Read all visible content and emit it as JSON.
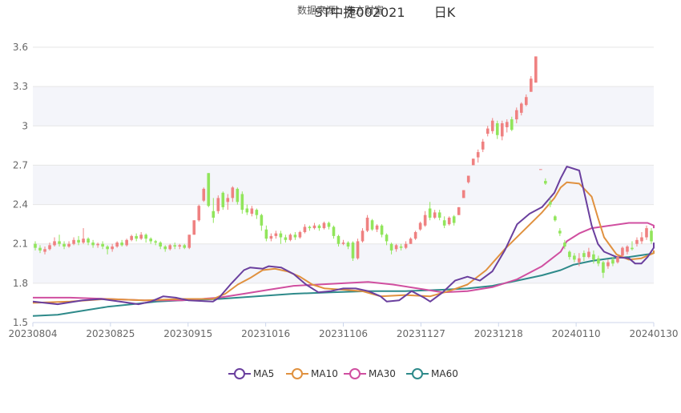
{
  "chart_data": {
    "type": "candlestick",
    "title": "ST中捷002021",
    "title_suffix": "日K",
    "subtitle": "数据来源：东方财富",
    "ylim": [
      1.5,
      3.6
    ],
    "y_ticks": [
      "1.5",
      "1.8",
      "2.1",
      "2.4",
      "2.7",
      "3",
      "3.3",
      "3.6"
    ],
    "x_tick_labels": [
      "20230804",
      "20230825",
      "20230915",
      "20231016",
      "20231106",
      "20231127",
      "20231218",
      "20240110",
      "20240130"
    ],
    "up_color": "#ef8181",
    "down_color": "#91e55b",
    "legend": [
      {
        "name": "MA5",
        "color": "#6a3f9e"
      },
      {
        "name": "MA10",
        "color": "#e0913f"
      },
      {
        "name": "MA30",
        "color": "#d04fa0"
      },
      {
        "name": "MA60",
        "color": "#2e8a8a"
      }
    ],
    "candles": [
      [
        2.1,
        2.07,
        2.12,
        2.05
      ],
      [
        2.07,
        2.05,
        2.09,
        2.03
      ],
      [
        2.04,
        2.06,
        2.08,
        2.02
      ],
      [
        2.06,
        2.09,
        2.11,
        2.05
      ],
      [
        2.09,
        2.12,
        2.15,
        2.08
      ],
      [
        2.12,
        2.1,
        2.17,
        2.08
      ],
      [
        2.1,
        2.08,
        2.12,
        2.06
      ],
      [
        2.08,
        2.1,
        2.12,
        2.07
      ],
      [
        2.1,
        2.13,
        2.15,
        2.09
      ],
      [
        2.13,
        2.11,
        2.16,
        2.09
      ],
      [
        2.11,
        2.14,
        2.22,
        2.1
      ],
      [
        2.14,
        2.11,
        2.15,
        2.09
      ],
      [
        2.11,
        2.09,
        2.13,
        2.07
      ],
      [
        2.09,
        2.1,
        2.11,
        2.07
      ],
      [
        2.1,
        2.08,
        2.12,
        2.06
      ],
      [
        2.08,
        2.06,
        2.09,
        2.02
      ],
      [
        2.06,
        2.08,
        2.1,
        2.04
      ],
      [
        2.08,
        2.11,
        2.12,
        2.07
      ],
      [
        2.11,
        2.09,
        2.13,
        2.08
      ],
      [
        2.09,
        2.13,
        2.14,
        2.08
      ],
      [
        2.13,
        2.16,
        2.17,
        2.12
      ],
      [
        2.16,
        2.14,
        2.18,
        2.12
      ],
      [
        2.14,
        2.17,
        2.19,
        2.13
      ],
      [
        2.17,
        2.14,
        2.18,
        2.11
      ],
      [
        2.14,
        2.12,
        2.15,
        2.1
      ],
      [
        2.12,
        2.11,
        2.13,
        2.09
      ],
      [
        2.11,
        2.08,
        2.12,
        2.06
      ],
      [
        2.08,
        2.06,
        2.09,
        2.04
      ],
      [
        2.06,
        2.09,
        2.1,
        2.05
      ],
      [
        2.09,
        2.08,
        2.11,
        2.06
      ],
      [
        2.08,
        2.09,
        2.1,
        2.06
      ],
      [
        2.09,
        2.07,
        2.1,
        2.06
      ],
      [
        2.07,
        2.17,
        2.17,
        2.06
      ],
      [
        2.17,
        2.28,
        2.28,
        2.17
      ],
      [
        2.28,
        2.39,
        2.4,
        2.27
      ],
      [
        2.43,
        2.52,
        2.53,
        2.42
      ],
      [
        2.64,
        2.39,
        2.64,
        2.38
      ],
      [
        2.35,
        2.3,
        2.45,
        2.26
      ],
      [
        2.35,
        2.45,
        2.47,
        2.33
      ],
      [
        2.49,
        2.38,
        2.5,
        2.36
      ],
      [
        2.42,
        2.45,
        2.48,
        2.36
      ],
      [
        2.45,
        2.53,
        2.54,
        2.42
      ],
      [
        2.52,
        2.42,
        2.53,
        2.4
      ],
      [
        2.48,
        2.36,
        2.5,
        2.33
      ],
      [
        2.37,
        2.34,
        2.4,
        2.32
      ],
      [
        2.33,
        2.37,
        2.39,
        2.31
      ],
      [
        2.36,
        2.32,
        2.37,
        2.29
      ],
      [
        2.32,
        2.24,
        2.33,
        2.2
      ],
      [
        2.21,
        2.14,
        2.24,
        2.12
      ],
      [
        2.14,
        2.16,
        2.18,
        2.12
      ],
      [
        2.16,
        2.18,
        2.2,
        2.14
      ],
      [
        2.18,
        2.15,
        2.2,
        2.1
      ],
      [
        2.15,
        2.13,
        2.17,
        2.11
      ],
      [
        2.13,
        2.17,
        2.18,
        2.12
      ],
      [
        2.17,
        2.15,
        2.19,
        2.13
      ],
      [
        2.15,
        2.19,
        2.2,
        2.14
      ],
      [
        2.19,
        2.23,
        2.25,
        2.18
      ],
      [
        2.23,
        2.22,
        2.24,
        2.2
      ],
      [
        2.22,
        2.24,
        2.26,
        2.21
      ],
      [
        2.24,
        2.22,
        2.25,
        2.2
      ],
      [
        2.22,
        2.26,
        2.27,
        2.21
      ],
      [
        2.26,
        2.23,
        2.27,
        2.21
      ],
      [
        2.23,
        2.16,
        2.24,
        2.14
      ],
      [
        2.16,
        2.1,
        2.17,
        2.08
      ],
      [
        2.1,
        2.11,
        2.13,
        2.09
      ],
      [
        2.11,
        2.08,
        2.12,
        2.06
      ],
      [
        2.11,
        1.99,
        2.12,
        1.97
      ],
      [
        1.99,
        2.12,
        2.14,
        1.98
      ],
      [
        2.12,
        2.2,
        2.22,
        2.11
      ],
      [
        2.2,
        2.3,
        2.32,
        2.19
      ],
      [
        2.28,
        2.21,
        2.29,
        2.2
      ],
      [
        2.21,
        2.24,
        2.25,
        2.19
      ],
      [
        2.24,
        2.17,
        2.25,
        2.15
      ],
      [
        2.17,
        2.12,
        2.18,
        2.09
      ],
      [
        2.1,
        2.05,
        2.11,
        2.02
      ],
      [
        2.06,
        2.09,
        2.1,
        2.04
      ],
      [
        2.08,
        2.07,
        2.1,
        2.05
      ],
      [
        2.07,
        2.1,
        2.12,
        2.06
      ],
      [
        2.1,
        2.14,
        2.15,
        2.1
      ],
      [
        2.14,
        2.19,
        2.2,
        2.13
      ],
      [
        2.21,
        2.26,
        2.27,
        2.2
      ],
      [
        2.24,
        2.32,
        2.35,
        2.23
      ],
      [
        2.37,
        2.3,
        2.42,
        2.28
      ],
      [
        2.3,
        2.34,
        2.36,
        2.29
      ],
      [
        2.34,
        2.3,
        2.36,
        2.28
      ],
      [
        2.28,
        2.24,
        2.31,
        2.22
      ],
      [
        2.25,
        2.3,
        2.31,
        2.24
      ],
      [
        2.31,
        2.26,
        2.32,
        2.24
      ],
      [
        2.32,
        2.38,
        2.38,
        2.32
      ],
      [
        2.45,
        2.51,
        2.51,
        2.45
      ],
      [
        2.57,
        2.62,
        2.62,
        2.56
      ],
      [
        2.7,
        2.75,
        2.75,
        2.7
      ],
      [
        2.76,
        2.8,
        2.82,
        2.72
      ],
      [
        2.82,
        2.88,
        2.9,
        2.8
      ],
      [
        2.94,
        2.98,
        3.0,
        2.92
      ],
      [
        2.96,
        3.04,
        3.06,
        2.94
      ],
      [
        3.02,
        2.93,
        3.04,
        2.9
      ],
      [
        2.92,
        3.02,
        3.04,
        2.89
      ],
      [
        2.99,
        3.03,
        3.05,
        2.95
      ],
      [
        3.05,
        2.97,
        3.07,
        2.96
      ],
      [
        3.05,
        3.12,
        3.14,
        3.02
      ],
      [
        3.1,
        3.17,
        3.18,
        3.08
      ],
      [
        3.16,
        3.22,
        3.24,
        3.15
      ],
      [
        3.26,
        3.36,
        3.38,
        3.26
      ],
      [
        3.33,
        3.53,
        3.53,
        3.33
      ],
      [
        2.67,
        2.67,
        2.67,
        2.67
      ],
      [
        2.58,
        2.56,
        2.6,
        2.55
      ],
      [
        2.42,
        2.4,
        2.45,
        2.38
      ],
      [
        2.31,
        2.28,
        2.32,
        2.27
      ],
      [
        2.2,
        2.18,
        2.22,
        2.16
      ],
      [
        2.11,
        2.08,
        2.13,
        2.06
      ],
      [
        2.04,
        2.0,
        2.05,
        1.98
      ],
      [
        2.01,
        1.98,
        2.03,
        1.96
      ],
      [
        1.96,
        1.99,
        2.03,
        1.93
      ],
      [
        2.03,
        2.0,
        2.05,
        1.97
      ],
      [
        2.0,
        2.04,
        2.07,
        1.99
      ],
      [
        2.02,
        1.98,
        2.05,
        1.95
      ],
      [
        1.99,
        1.95,
        2.01,
        1.93
      ],
      [
        1.96,
        1.88,
        1.97,
        1.84
      ],
      [
        1.93,
        1.96,
        1.98,
        1.91
      ],
      [
        1.98,
        1.95,
        2.0,
        1.93
      ],
      [
        1.96,
        2.0,
        2.01,
        1.95
      ],
      [
        2.01,
        2.07,
        2.08,
        2.0
      ],
      [
        2.04,
        2.08,
        2.09,
        2.02
      ],
      [
        2.07,
        2.06,
        2.12,
        2.05
      ],
      [
        2.1,
        2.13,
        2.15,
        2.08
      ],
      [
        2.12,
        2.15,
        2.19,
        2.1
      ],
      [
        2.15,
        2.22,
        2.24,
        2.13
      ],
      [
        2.2,
        2.12,
        2.22,
        2.1
      ]
    ],
    "ma5": [
      [
        0,
        1.66
      ],
      [
        0.04,
        1.64
      ],
      [
        0.08,
        1.67
      ],
      [
        0.11,
        1.68
      ],
      [
        0.14,
        1.66
      ],
      [
        0.17,
        1.64
      ],
      [
        0.19,
        1.66
      ],
      [
        0.21,
        1.7
      ],
      [
        0.23,
        1.69
      ],
      [
        0.25,
        1.67
      ],
      [
        0.29,
        1.66
      ],
      [
        0.3,
        1.69
      ],
      [
        0.32,
        1.8
      ],
      [
        0.34,
        1.9
      ],
      [
        0.35,
        1.92
      ],
      [
        0.37,
        1.91
      ],
      [
        0.38,
        1.93
      ],
      [
        0.4,
        1.92
      ],
      [
        0.42,
        1.87
      ],
      [
        0.44,
        1.79
      ],
      [
        0.46,
        1.73
      ],
      [
        0.48,
        1.74
      ],
      [
        0.5,
        1.76
      ],
      [
        0.52,
        1.76
      ],
      [
        0.54,
        1.74
      ],
      [
        0.56,
        1.7
      ],
      [
        0.57,
        1.66
      ],
      [
        0.59,
        1.67
      ],
      [
        0.61,
        1.74
      ],
      [
        0.63,
        1.69
      ],
      [
        0.64,
        1.66
      ],
      [
        0.66,
        1.73
      ],
      [
        0.68,
        1.82
      ],
      [
        0.7,
        1.85
      ],
      [
        0.72,
        1.82
      ],
      [
        0.74,
        1.89
      ],
      [
        0.76,
        2.05
      ],
      [
        0.78,
        2.25
      ],
      [
        0.8,
        2.33
      ],
      [
        0.82,
        2.38
      ],
      [
        0.84,
        2.49
      ],
      [
        0.85,
        2.6
      ],
      [
        0.86,
        2.69
      ],
      [
        0.88,
        2.66
      ],
      [
        0.89,
        2.45
      ],
      [
        0.9,
        2.24
      ],
      [
        0.91,
        2.1
      ],
      [
        0.92,
        2.04
      ],
      [
        0.94,
        2.0
      ],
      [
        0.96,
        1.99
      ],
      [
        0.97,
        1.95
      ],
      [
        0.98,
        1.95
      ],
      [
        0.99,
        2.0
      ],
      [
        1.0,
        2.07
      ],
      [
        1.03,
        2.11
      ]
    ],
    "ma10": [
      [
        0,
        1.65
      ],
      [
        0.06,
        1.66
      ],
      [
        0.12,
        1.68
      ],
      [
        0.18,
        1.67
      ],
      [
        0.24,
        1.68
      ],
      [
        0.29,
        1.68
      ],
      [
        0.31,
        1.72
      ],
      [
        0.33,
        1.79
      ],
      [
        0.35,
        1.84
      ],
      [
        0.37,
        1.9
      ],
      [
        0.39,
        1.91
      ],
      [
        0.41,
        1.89
      ],
      [
        0.43,
        1.85
      ],
      [
        0.45,
        1.79
      ],
      [
        0.47,
        1.76
      ],
      [
        0.5,
        1.75
      ],
      [
        0.53,
        1.74
      ],
      [
        0.56,
        1.7
      ],
      [
        0.6,
        1.71
      ],
      [
        0.64,
        1.7
      ],
      [
        0.67,
        1.74
      ],
      [
        0.7,
        1.79
      ],
      [
        0.73,
        1.9
      ],
      [
        0.76,
        2.06
      ],
      [
        0.79,
        2.2
      ],
      [
        0.82,
        2.34
      ],
      [
        0.84,
        2.45
      ],
      [
        0.85,
        2.53
      ],
      [
        0.86,
        2.57
      ],
      [
        0.88,
        2.56
      ],
      [
        0.9,
        2.46
      ],
      [
        0.91,
        2.3
      ],
      [
        0.92,
        2.15
      ],
      [
        0.94,
        2.02
      ],
      [
        0.96,
        1.98
      ],
      [
        0.98,
        1.99
      ],
      [
        1.0,
        2.03
      ],
      [
        1.03,
        2.05
      ]
    ],
    "ma30": [
      [
        0,
        1.69
      ],
      [
        0.06,
        1.69
      ],
      [
        0.12,
        1.68
      ],
      [
        0.18,
        1.67
      ],
      [
        0.24,
        1.67
      ],
      [
        0.3,
        1.69
      ],
      [
        0.34,
        1.72
      ],
      [
        0.38,
        1.75
      ],
      [
        0.42,
        1.78
      ],
      [
        0.46,
        1.79
      ],
      [
        0.5,
        1.8
      ],
      [
        0.54,
        1.81
      ],
      [
        0.58,
        1.79
      ],
      [
        0.62,
        1.76
      ],
      [
        0.66,
        1.73
      ],
      [
        0.7,
        1.74
      ],
      [
        0.74,
        1.77
      ],
      [
        0.78,
        1.83
      ],
      [
        0.82,
        1.93
      ],
      [
        0.85,
        2.04
      ],
      [
        0.86,
        2.12
      ],
      [
        0.88,
        2.18
      ],
      [
        0.9,
        2.22
      ],
      [
        0.93,
        2.24
      ],
      [
        0.96,
        2.26
      ],
      [
        0.99,
        2.26
      ],
      [
        1.01,
        2.24
      ],
      [
        1.03,
        2.22
      ]
    ],
    "ma60": [
      [
        0,
        1.55
      ],
      [
        0.04,
        1.56
      ],
      [
        0.08,
        1.59
      ],
      [
        0.12,
        1.62
      ],
      [
        0.16,
        1.64
      ],
      [
        0.2,
        1.66
      ],
      [
        0.24,
        1.67
      ],
      [
        0.3,
        1.68
      ],
      [
        0.36,
        1.7
      ],
      [
        0.42,
        1.72
      ],
      [
        0.48,
        1.73
      ],
      [
        0.54,
        1.74
      ],
      [
        0.6,
        1.74
      ],
      [
        0.66,
        1.75
      ],
      [
        0.7,
        1.76
      ],
      [
        0.74,
        1.78
      ],
      [
        0.78,
        1.82
      ],
      [
        0.82,
        1.86
      ],
      [
        0.85,
        1.9
      ],
      [
        0.87,
        1.94
      ],
      [
        0.9,
        1.97
      ],
      [
        0.93,
        1.99
      ],
      [
        0.96,
        2.0
      ],
      [
        0.99,
        2.02
      ],
      [
        1.01,
        2.03
      ],
      [
        1.03,
        2.04
      ]
    ]
  }
}
